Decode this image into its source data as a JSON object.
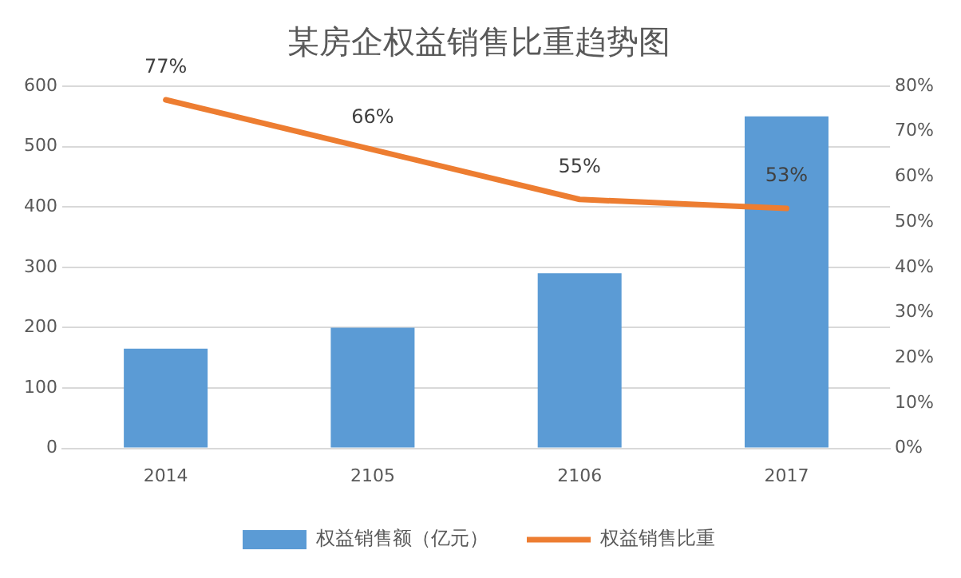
{
  "chart_data": {
    "type": "bar",
    "title": "某房企权益销售比重趋势图",
    "categories": [
      "2014",
      "2105",
      "2106",
      "2017"
    ],
    "series": [
      {
        "name": "权益销售额（亿元）",
        "color": "#5b9bd5",
        "values": [
          165,
          200,
          290,
          550
        ]
      },
      {
        "name": "权益销售比重",
        "type": "line",
        "axis": "y2",
        "color": "#ed7d31",
        "values": [
          77,
          66,
          55,
          53
        ],
        "value_labels": [
          "77%",
          "66%",
          "55%",
          "53%"
        ]
      }
    ],
    "ylim": [
      0,
      600
    ],
    "yticks": [
      0,
      100,
      200,
      300,
      400,
      500,
      600
    ],
    "y2lim": [
      0,
      80
    ],
    "y2ticks": [
      {
        "value": 0,
        "label": "0%"
      },
      {
        "value": 10,
        "label": "10%"
      },
      {
        "value": 20,
        "label": "20%"
      },
      {
        "value": 30,
        "label": "30%"
      },
      {
        "value": 40,
        "label": "40%"
      },
      {
        "value": 50,
        "label": "50%"
      },
      {
        "value": 60,
        "label": "60%"
      },
      {
        "value": 70,
        "label": "70%"
      },
      {
        "value": 80,
        "label": "80%"
      }
    ],
    "grid": "y",
    "legend": "bottom",
    "marker": "none"
  }
}
